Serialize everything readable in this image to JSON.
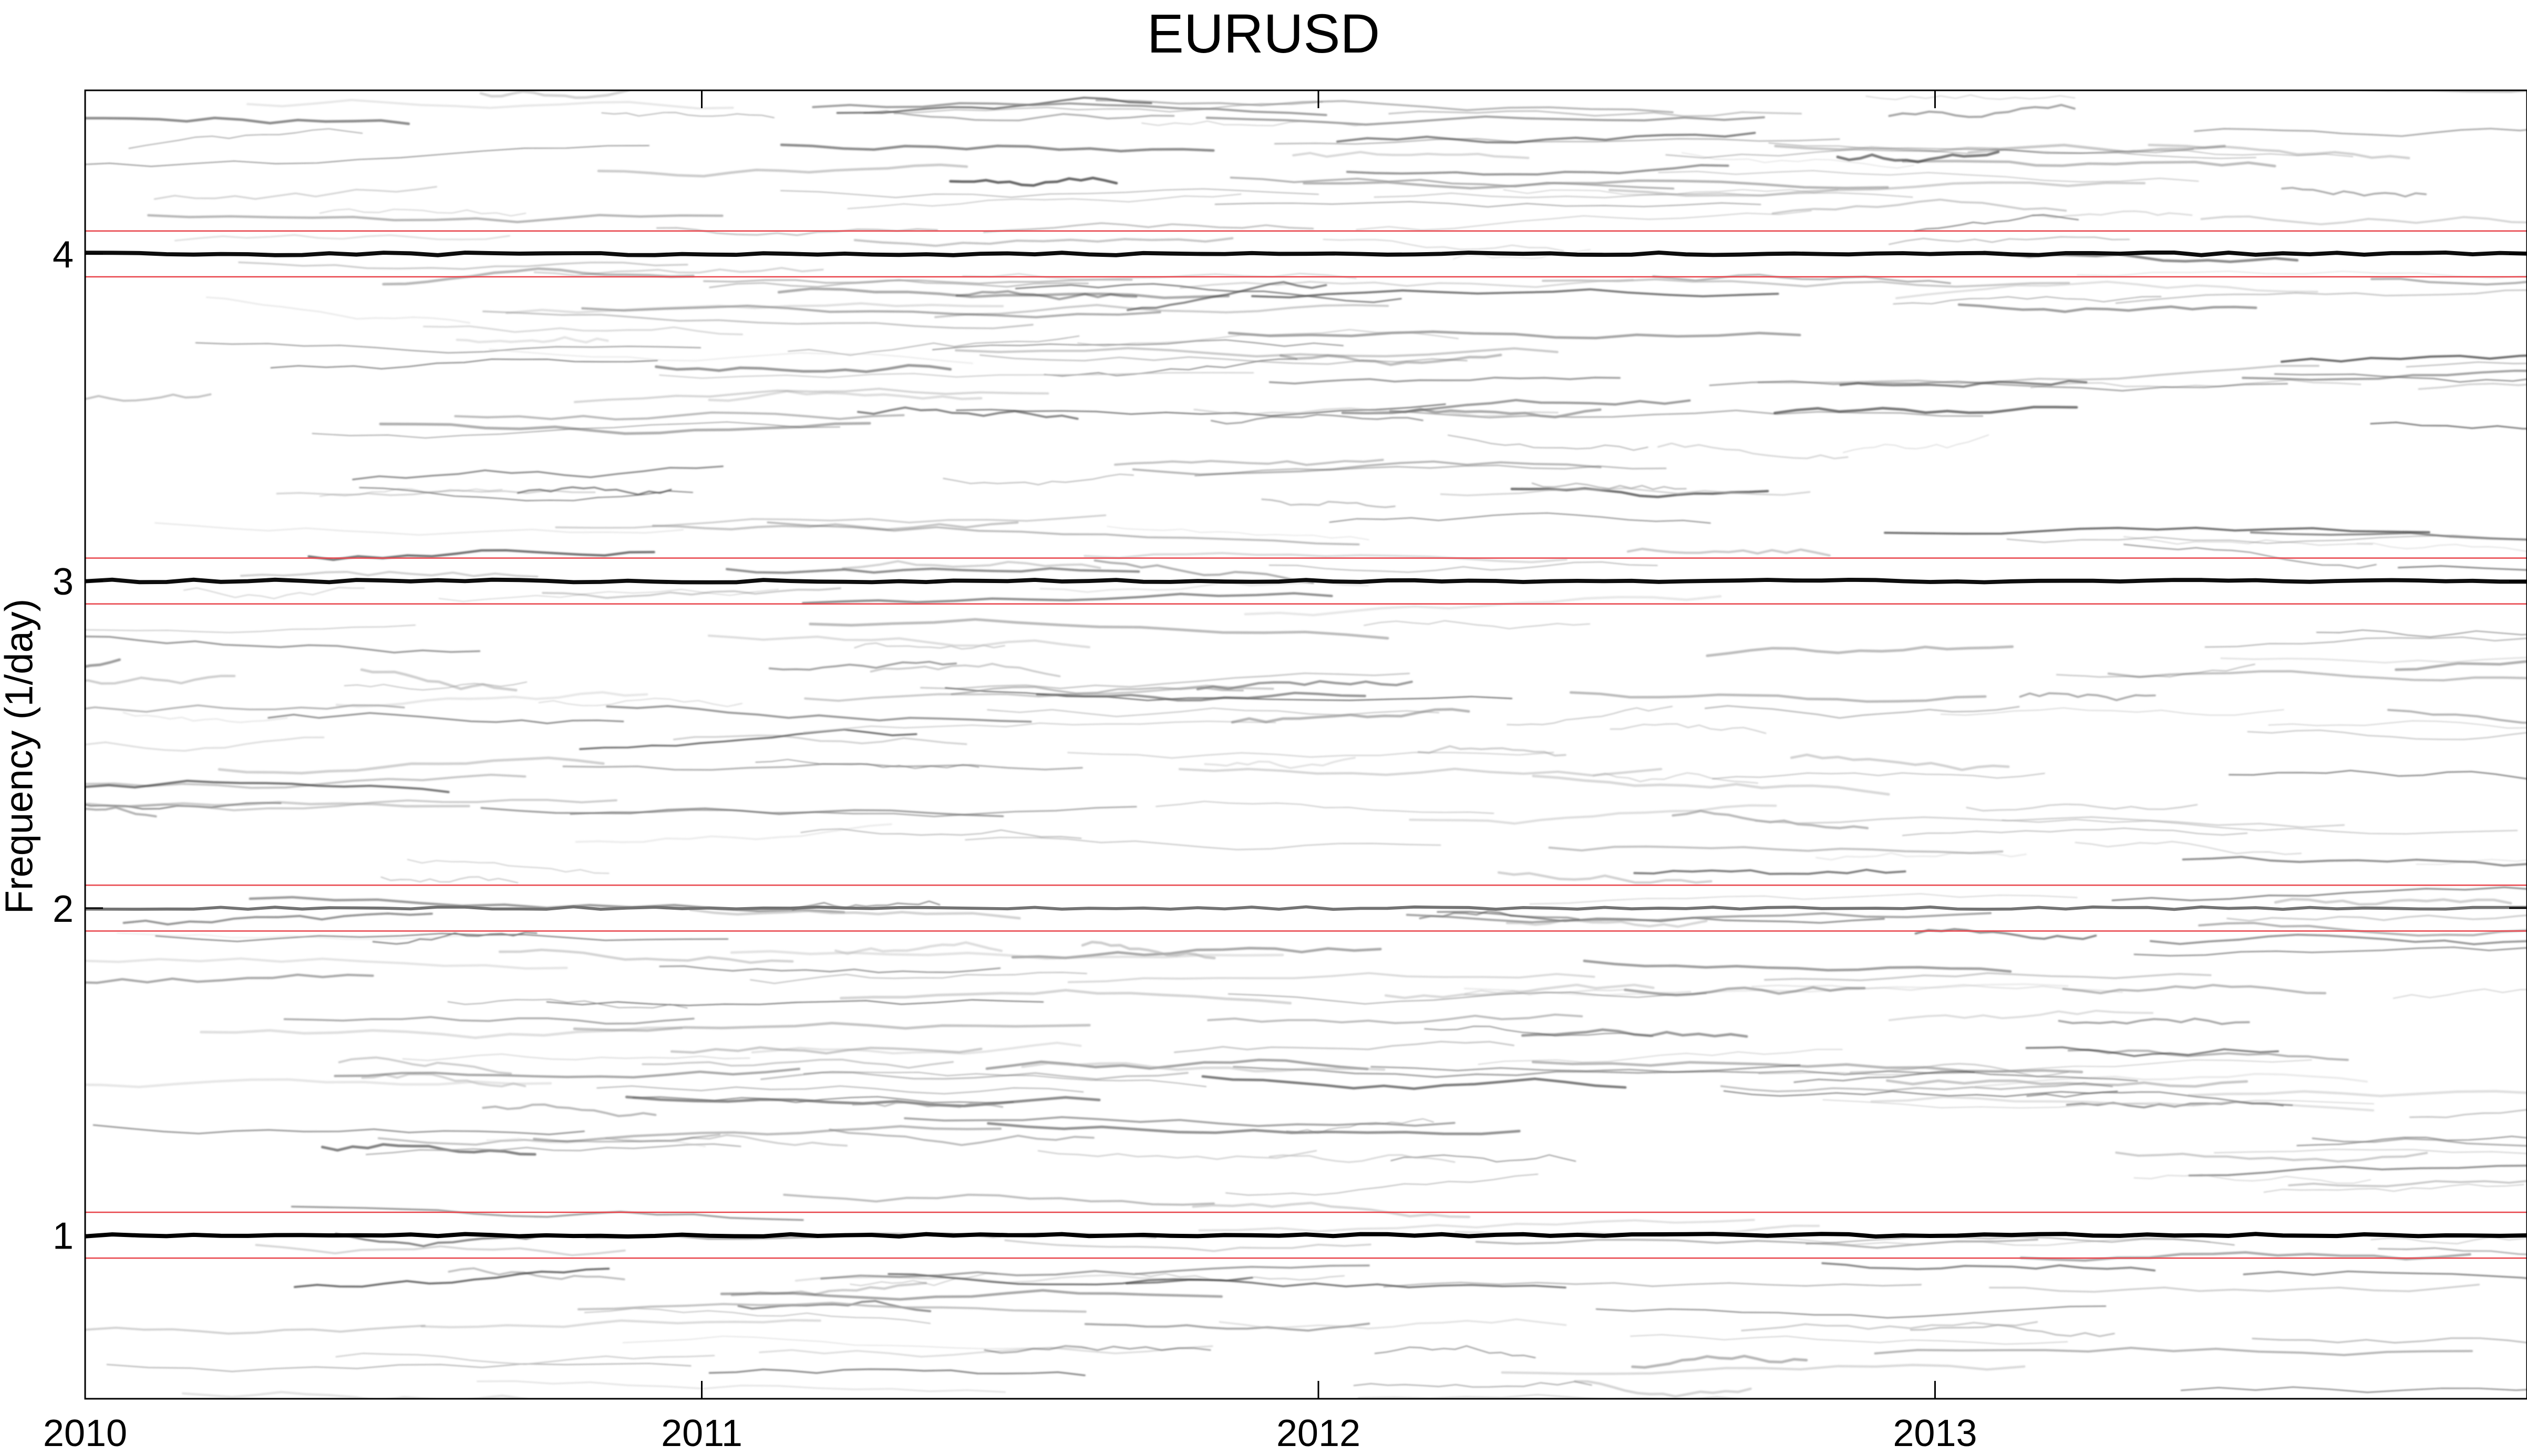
{
  "chart_data": {
    "type": "heatmap",
    "title": "EURUSD",
    "xlabel": "",
    "ylabel": "Frequency (1/day)",
    "xlim": [
      2010,
      2013.96
    ],
    "ylim": [
      0.5,
      4.5
    ],
    "x_ticks": [
      2010,
      2011,
      2012,
      2013
    ],
    "x_tick_labels": [
      "2010",
      "2011",
      "2012",
      "2013"
    ],
    "y_ticks": [
      1,
      2,
      3,
      4
    ],
    "y_tick_labels": [
      "1",
      "2",
      "3",
      "4"
    ],
    "colormap": "gray-reversed",
    "grid": false,
    "peak_bands": [
      {
        "frequency": 1,
        "intensity": 1.0
      },
      {
        "frequency": 2,
        "intensity": 0.55
      },
      {
        "frequency": 3,
        "intensity": 0.95
      },
      {
        "frequency": 4,
        "intensity": 0.95
      }
    ],
    "reference_lines": [
      {
        "frequency": 0.93,
        "color": "#e8434a"
      },
      {
        "frequency": 1.07,
        "color": "#e8434a"
      },
      {
        "frequency": 1.93,
        "color": "#e8434a"
      },
      {
        "frequency": 2.07,
        "color": "#e8434a"
      },
      {
        "frequency": 2.93,
        "color": "#e8434a"
      },
      {
        "frequency": 3.07,
        "color": "#e8434a"
      },
      {
        "frequency": 3.93,
        "color": "#e8434a"
      },
      {
        "frequency": 4.07,
        "color": "#e8434a"
      }
    ]
  }
}
